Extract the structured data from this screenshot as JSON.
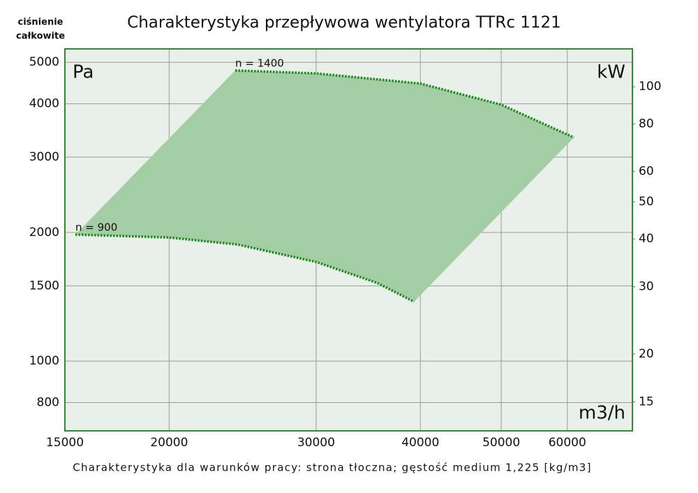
{
  "chart_data": {
    "type": "line",
    "title": "Charakterystyka przepływowa wentylatora TTRc 1121",
    "ylabel": [
      "ciśnienie",
      "całkowite"
    ],
    "yunit": "Pa",
    "y2unit": "kW",
    "xunit": "m3/h",
    "footnote": "Charakterystyka dla warunków pracy: strona tłoczna; gęstość medium 1,225 [kg/m3]",
    "xscale": "log",
    "yscale": "log",
    "y2scale": "log",
    "grid": true,
    "xlim": [
      15000,
      71800
    ],
    "xticks": [
      15000,
      20000,
      30000,
      40000,
      50000,
      60000
    ],
    "ylim": [
      687,
      5375
    ],
    "yticks": [
      800,
      1000,
      1500,
      2000,
      3000,
      4000,
      5000
    ],
    "y2lim": [
      12.6,
      125.6
    ],
    "y2ticks": [
      15,
      20,
      30,
      40,
      50,
      60,
      80,
      100
    ],
    "area_color": "#a3cda3",
    "series": [
      {
        "name": "n = 1400",
        "color": "#1e8a1e",
        "x": [
          24000,
          30000,
          40000,
          50000,
          61100
        ],
        "values": [
          4786,
          4710,
          4460,
          3980,
          3335
        ]
      },
      {
        "name": "n = 900",
        "color": "#1e8a1e",
        "x": [
          15440,
          20000,
          24150,
          30000,
          35500,
          39300
        ],
        "values": [
          1977,
          1946,
          1874,
          1706,
          1524,
          1377
        ]
      }
    ]
  }
}
